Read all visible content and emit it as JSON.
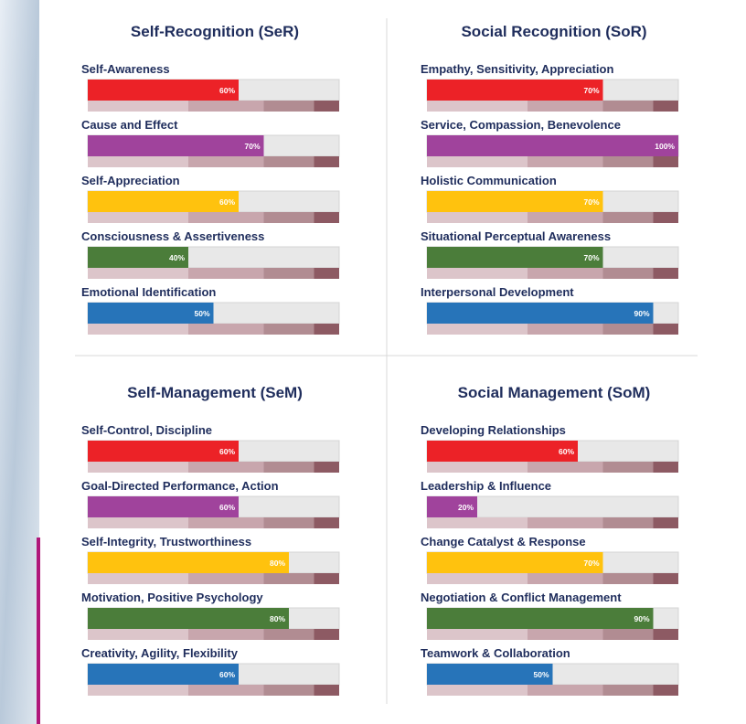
{
  "chart_data": [
    {
      "type": "bar",
      "orientation": "horizontal",
      "title": "Self-Recognition (SeR)",
      "categories": [
        "Self-Awareness",
        "Cause and Effect",
        "Self-Appreciation",
        "Consciousness & Assertiveness",
        "Emotional Identification"
      ],
      "values": [
        60,
        70,
        60,
        40,
        50
      ],
      "value_labels": [
        "60%",
        "70%",
        "60%",
        "40%",
        "50%"
      ],
      "colors": [
        "#ec2227",
        "#a0439c",
        "#ffc20e",
        "#4b7d3a",
        "#2774b9"
      ],
      "xlim": [
        0,
        100
      ],
      "band_edges": [
        0,
        40,
        70,
        90,
        100
      ],
      "band_colors": [
        "#dcc5ca",
        "#c8a6ad",
        "#b18c92",
        "#8d5a63"
      ]
    },
    {
      "type": "bar",
      "orientation": "horizontal",
      "title": "Social Recognition (SoR)",
      "categories": [
        "Empathy, Sensitivity, Appreciation",
        "Service, Compassion, Benevolence",
        "Holistic Communication",
        "Situational Perceptual Awareness",
        "Interpersonal Development"
      ],
      "values": [
        70,
        100,
        70,
        70,
        90
      ],
      "value_labels": [
        "70%",
        "100%",
        "70%",
        "70%",
        "90%"
      ],
      "colors": [
        "#ec2227",
        "#a0439c",
        "#ffc20e",
        "#4b7d3a",
        "#2774b9"
      ],
      "xlim": [
        0,
        100
      ],
      "band_edges": [
        0,
        40,
        70,
        90,
        100
      ],
      "band_colors": [
        "#dcc5ca",
        "#c8a6ad",
        "#b18c92",
        "#8d5a63"
      ]
    },
    {
      "type": "bar",
      "orientation": "horizontal",
      "title": "Self-Management (SeM)",
      "categories": [
        "Self-Control, Discipline",
        "Goal-Directed Performance, Action",
        "Self-Integrity, Trustworthiness",
        "Motivation, Positive Psychology",
        "Creativity, Agility, Flexibility"
      ],
      "values": [
        60,
        60,
        80,
        80,
        60
      ],
      "value_labels": [
        "60%",
        "60%",
        "80%",
        "80%",
        "60%"
      ],
      "colors": [
        "#ec2227",
        "#a0439c",
        "#ffc20e",
        "#4b7d3a",
        "#2774b9"
      ],
      "xlim": [
        0,
        100
      ],
      "band_edges": [
        0,
        40,
        70,
        90,
        100
      ],
      "band_colors": [
        "#dcc5ca",
        "#c8a6ad",
        "#b18c92",
        "#8d5a63"
      ]
    },
    {
      "type": "bar",
      "orientation": "horizontal",
      "title": "Social Management (SoM)",
      "categories": [
        "Developing Relationships",
        "Leadership & Influence",
        "Change Catalyst & Response",
        "Negotiation & Conflict Management",
        "Teamwork & Collaboration"
      ],
      "values": [
        60,
        20,
        70,
        90,
        50
      ],
      "value_labels": [
        "60%",
        "20%",
        "70%",
        "90%",
        "50%"
      ],
      "colors": [
        "#ec2227",
        "#a0439c",
        "#ffc20e",
        "#4b7d3a",
        "#2774b9"
      ],
      "xlim": [
        0,
        100
      ],
      "band_edges": [
        0,
        40,
        70,
        90,
        100
      ],
      "band_colors": [
        "#dcc5ca",
        "#c8a6ad",
        "#b18c92",
        "#8d5a63"
      ]
    }
  ]
}
